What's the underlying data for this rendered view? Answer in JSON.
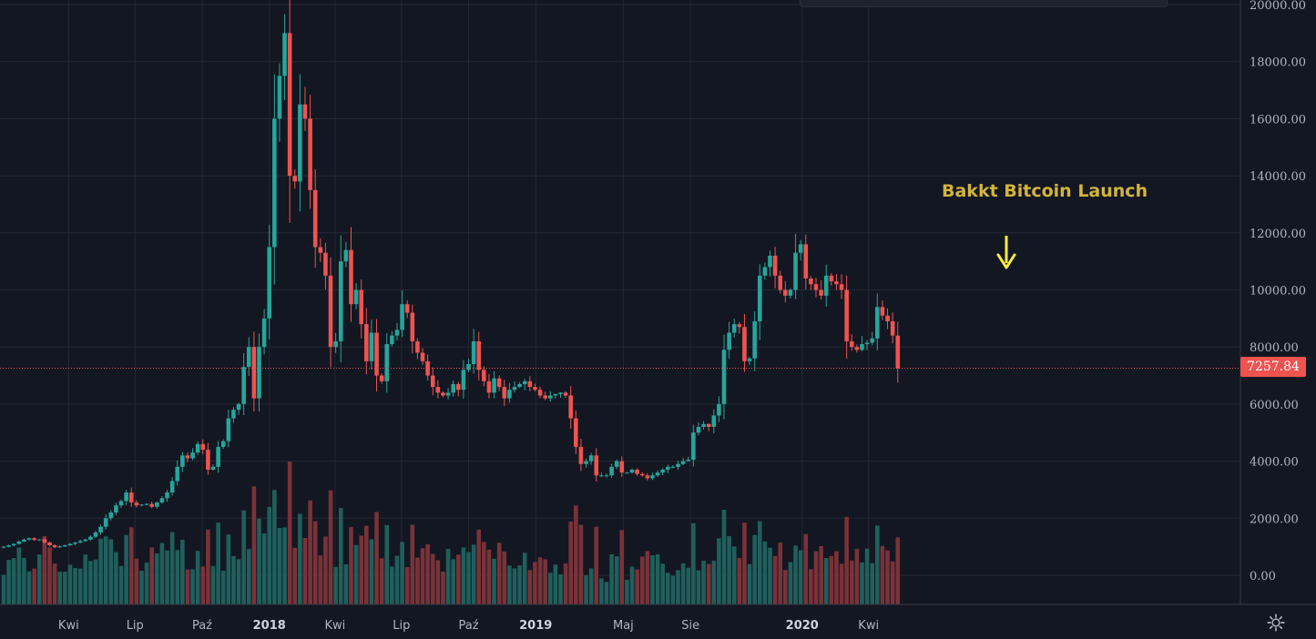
{
  "chart_data": {
    "type": "candlestick",
    "title": "",
    "annotation": "Bakkt Bitcoin Launch",
    "current_price": "7257.84",
    "y_ticks": [
      "20000.00",
      "18000.00",
      "16000.00",
      "14000.00",
      "12000.00",
      "10000.00",
      "8000.00",
      "6000.00",
      "4000.00",
      "2000.00",
      "0.00"
    ],
    "x_ticks": [
      {
        "label": "Kwi",
        "bold": false
      },
      {
        "label": "Lip",
        "bold": false
      },
      {
        "label": "Paź",
        "bold": false
      },
      {
        "label": "2018",
        "bold": true
      },
      {
        "label": "Kwi",
        "bold": false
      },
      {
        "label": "Lip",
        "bold": false
      },
      {
        "label": "Paź",
        "bold": false
      },
      {
        "label": "2019",
        "bold": true
      },
      {
        "label": "Maj",
        "bold": false
      },
      {
        "label": "Sie",
        "bold": false
      },
      {
        "label": "2020",
        "bold": true
      },
      {
        "label": "Kwi",
        "bold": false
      }
    ],
    "x_tick_dates": [
      "2017-04-01",
      "2017-07-01",
      "2017-10-01",
      "2018-01-01",
      "2018-04-01",
      "2018-07-01",
      "2018-10-01",
      "2019-01-01",
      "2019-05-01",
      "2019-08-01",
      "2020-01-01",
      "2020-04-01"
    ],
    "bar_interval": "1 week",
    "first_bar_date": "2017-01-02",
    "ylim": [
      -1000,
      20000
    ],
    "colors": {
      "up": "#26a69a",
      "down": "#ef5350",
      "volume_up": "#1f5f5c",
      "volume_down": "#7a3238",
      "background": "#131722",
      "grid": "#242834",
      "text": "#b2b5be"
    },
    "close": [
      1000,
      1050,
      1100,
      1180,
      1250,
      1300,
      1240,
      1260,
      1150,
      1050,
      980,
      1010,
      1050,
      1100,
      1150,
      1200,
      1250,
      1350,
      1500,
      1700,
      2000,
      2200,
      2450,
      2600,
      2900,
      2550,
      2450,
      2480,
      2500,
      2400,
      2550,
      2700,
      2900,
      3300,
      3800,
      4200,
      4100,
      4300,
      4600,
      4400,
      3700,
      3800,
      4500,
      4700,
      5500,
      5800,
      6000,
      7300,
      8000,
      6200,
      8000,
      9000,
      11500,
      16000,
      17500,
      19000,
      14000,
      13800,
      16500,
      16000,
      13500,
      11500,
      11300,
      10500,
      8000,
      8200,
      11000,
      11400,
      9500,
      10000,
      8800,
      7500,
      8500,
      7000,
      6800,
      8100,
      8400,
      8600,
      9500,
      9200,
      8200,
      7800,
      7500,
      7000,
      6600,
      6400,
      6300,
      6400,
      6700,
      6500,
      7200,
      7400,
      8200,
      7200,
      6800,
      6400,
      6900,
      6600,
      6200,
      6500,
      6600,
      6700,
      6800,
      6600,
      6500,
      6300,
      6200,
      6300,
      6350,
      6400,
      6300,
      5500,
      4500,
      3900,
      4000,
      4200,
      3500,
      3500,
      3500,
      3800,
      4000,
      3600,
      3600,
      3700,
      3550,
      3500,
      3400,
      3500,
      3600,
      3700,
      3800,
      3800,
      3900,
      4000,
      4050,
      5000,
      5200,
      5300,
      5200,
      5600,
      6000,
      7900,
      8500,
      8800,
      8700,
      7500,
      7600,
      8900,
      10500,
      10800,
      11200,
      10500,
      10000,
      9800,
      10000,
      11300,
      11600,
      10400,
      10200,
      10000,
      9800,
      10500,
      10300,
      10200,
      10000,
      8200,
      8000,
      7900,
      8100,
      8150,
      8300,
      9400,
      9100,
      8900,
      8400,
      7250
    ]
  }
}
